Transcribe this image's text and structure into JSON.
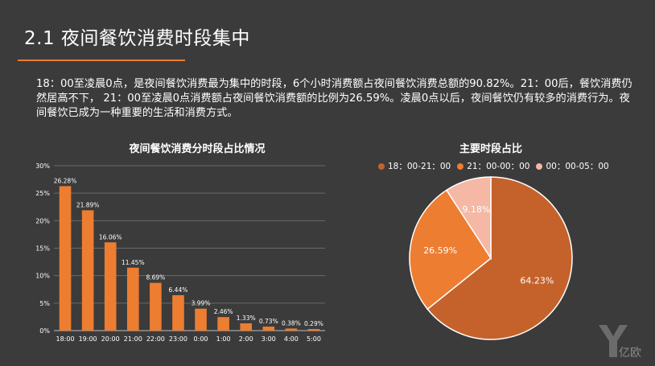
{
  "header": {
    "title": "2.1 夜间餐饮消费时段集中"
  },
  "body": {
    "paragraph": "18：00至凌晨0点，是夜间餐饮消费最为集中的时段，6个小时消费额占夜间餐饮消费总额的90.82%。21：00后，餐饮消费仍然居高不下， 21：00至凌晨0点消费额占夜间餐饮消费额的比例为26.59%。凌晨0点以后，夜间餐饮仍有较多的消费行为。夜间餐饮已成为一种重要的生活和消费方式。"
  },
  "logo": {
    "text": "亿欧",
    "icon": "yiou-logo-icon"
  },
  "colors": {
    "accent": "#ed7d31",
    "dark_orange": "#c5622b",
    "pink": "#f4b8a4",
    "bar": "#ed7d31",
    "grid": "#6a6a6a"
  },
  "chart_data": [
    {
      "type": "bar",
      "title": "夜间餐饮消费分时段占比情况",
      "categories": [
        "18:00",
        "19:00",
        "20:00",
        "21:00",
        "22:00",
        "23:00",
        "0:00",
        "1:00",
        "2:00",
        "3:00",
        "4:00",
        "5:00"
      ],
      "values": [
        26.28,
        21.89,
        16.06,
        11.45,
        8.69,
        6.44,
        3.99,
        2.46,
        1.33,
        0.73,
        0.38,
        0.29
      ],
      "value_labels": [
        "26.28%",
        "21.89%",
        "16.06%",
        "11.45%",
        "8.69%",
        "6.44%",
        "3.99%",
        "2.46%",
        "1.33%",
        "0.73%",
        "0.38%",
        "0.29%"
      ],
      "y_ticks": [
        "0%",
        "5%",
        "10%",
        "15%",
        "20%",
        "25%",
        "30%"
      ],
      "ylim": [
        0,
        30
      ],
      "grid": true
    },
    {
      "type": "pie",
      "title": "主要时段占比",
      "legend_position": "top",
      "slices": [
        {
          "name": "18：00-21：00",
          "value": 64.23,
          "label": "64.23%",
          "color": "#c5622b"
        },
        {
          "name": "21：00-00：00",
          "value": 26.59,
          "label": "26.59%",
          "color": "#ed7d31"
        },
        {
          "name": "00：00-05：00",
          "value": 9.18,
          "label": "9.18%",
          "color": "#f4b8a4"
        }
      ]
    }
  ]
}
